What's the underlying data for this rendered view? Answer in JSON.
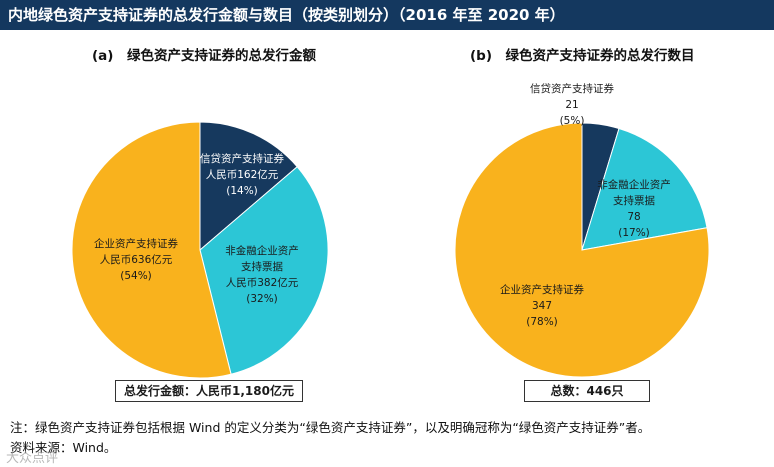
{
  "header": {
    "title": "内地绿色资产支持证券的总发行金额与数目（按类别划分）（2016 年至 2020 年）"
  },
  "chart_data": [
    {
      "type": "pie",
      "title": "(a)　绿色资产支持证券的总发行金额",
      "total_label": "总发行金额：人民币1,180亿元",
      "slices": [
        {
          "name": "信贷资产支持证券",
          "value_label": "人民币162亿元",
          "value": 162,
          "pct_label": "(14%)",
          "color": "#16395e",
          "text_color": "#ffffff"
        },
        {
          "name_lines": [
            "非金融企业资产",
            "支持票据"
          ],
          "name": "非金融企业资产支持票据",
          "value_label": "人民币382亿元",
          "value": 382,
          "pct_label": "(32%)",
          "color": "#2cc6d6",
          "text_color": "#1a1a1a"
        },
        {
          "name": "企业资产支持证券",
          "value_label": "人民币636亿元",
          "value": 636,
          "pct_label": "(54%)",
          "color": "#f9b21d",
          "text_color": "#1a1a1a"
        }
      ]
    },
    {
      "type": "pie",
      "title": "(b)　绿色资产支持证券的总发行数目",
      "total_label": "总数：446只",
      "slices": [
        {
          "name": "信贷资产支持证券",
          "value_label": "21",
          "value": 21,
          "pct_label": "(5%)",
          "color": "#16395e",
          "text_color": "#1a1a1a"
        },
        {
          "name_lines": [
            "非金融企业资产",
            "支持票据"
          ],
          "name": "非金融企业资产支持票据",
          "value_label": "78",
          "value": 78,
          "pct_label": "(17%)",
          "color": "#2cc6d6",
          "text_color": "#1a1a1a"
        },
        {
          "name": "企业资产支持证券",
          "value_label": "347",
          "value": 347,
          "pct_label": "(78%)",
          "color": "#f9b21d",
          "text_color": "#1a1a1a"
        }
      ]
    }
  ],
  "footer": {
    "note": "注：绿色资产支持证券包括根据 Wind 的定义分类为“绿色资产支持证券”，以及明确冠称为“绿色资产支持证券”者。",
    "source": "资料来源：Wind。",
    "watermark": "大众点评"
  }
}
